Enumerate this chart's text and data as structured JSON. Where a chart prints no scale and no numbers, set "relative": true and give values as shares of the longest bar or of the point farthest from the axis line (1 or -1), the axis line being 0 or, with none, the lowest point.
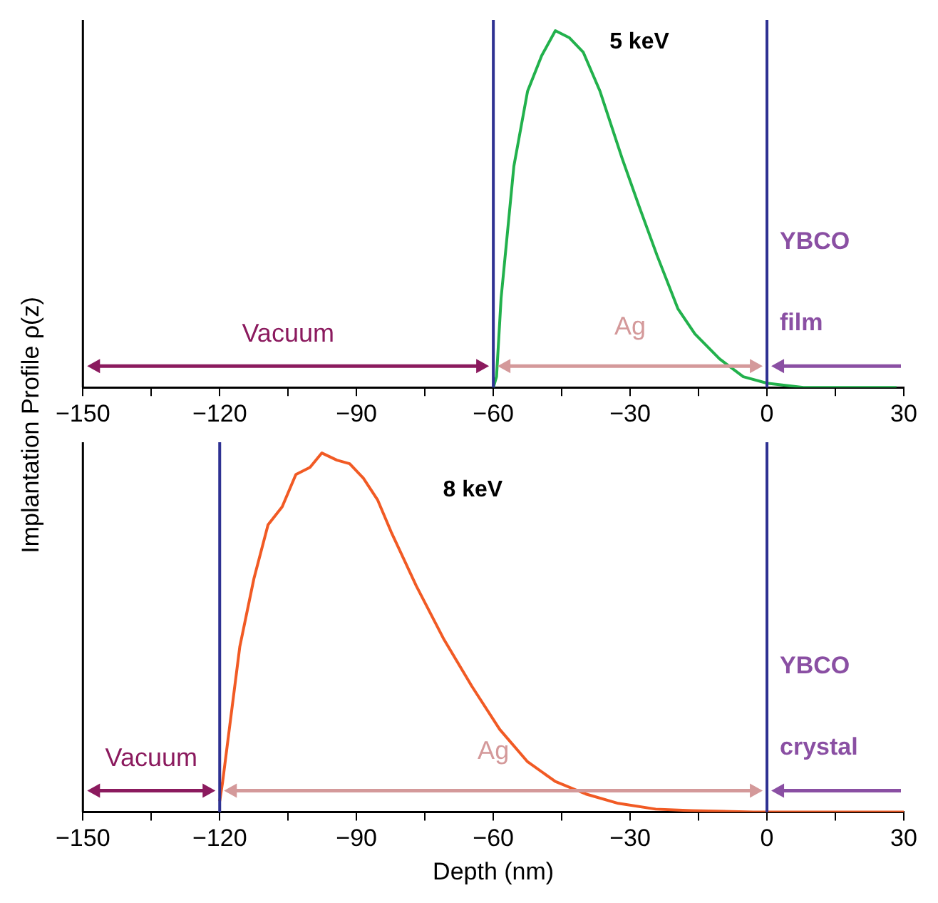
{
  "chart_data": [
    {
      "type": "line",
      "relative": true,
      "ylabel": "Implantation Profile ρ(z)",
      "xlim": [
        -150,
        30
      ],
      "xticks": [
        -150,
        {
          "value": -135,
          "label": null
        },
        -120,
        {
          "value": -105,
          "label": null
        },
        -90,
        {
          "value": -75,
          "label": null
        },
        -60,
        {
          "value": -45,
          "label": null
        },
        -30,
        {
          "value": -15,
          "label": null
        },
        0,
        {
          "value": 15,
          "label": null
        },
        30
      ],
      "tick_labels": "x",
      "grid": false,
      "legend": false,
      "marker": "none",
      "series": [
        {
          "name": "5 keV",
          "color": "#22b14c",
          "x": [
            -60,
            -59.3,
            -58.3,
            -55.5,
            -52.5,
            -49.4,
            -46.4,
            -43.3,
            -40.3,
            -36.6,
            -31.7,
            -28.1,
            -24.1,
            -19.5,
            -15.8,
            -10.4,
            -5.2,
            0,
            8,
            28.4
          ],
          "values": [
            0,
            0.03,
            0.25,
            0.62,
            0.83,
            0.93,
            1,
            0.98,
            0.94,
            0.83,
            0.64,
            0.51,
            0.37,
            0.22,
            0.15,
            0.08,
            0.03,
            0.012,
            0,
            0
          ]
        }
      ],
      "ref_lines": [
        {
          "axis": "x",
          "value": -60,
          "color": "#2e3192"
        },
        {
          "axis": "x",
          "value": 0,
          "color": "#2e3192"
        }
      ],
      "annotations": [
        "Vacuum",
        "Ag",
        "YBCO",
        "film"
      ]
    },
    {
      "type": "line",
      "relative": true,
      "xlabel": "Depth (nm)",
      "xlim": [
        -150,
        30
      ],
      "xticks": [
        -150,
        {
          "value": -135,
          "label": null
        },
        -120,
        {
          "value": -105,
          "label": null
        },
        -90,
        {
          "value": -75,
          "label": null
        },
        -60,
        {
          "value": -45,
          "label": null
        },
        -30,
        {
          "value": -15,
          "label": null
        },
        0,
        {
          "value": 15,
          "label": null
        },
        30
      ],
      "tick_labels": "x",
      "grid": false,
      "legend": false,
      "marker": "none",
      "series": [
        {
          "name": "8 keV",
          "color": "#f15a24",
          "x": [
            -120,
            -119.4,
            -115.6,
            -112.5,
            -109.4,
            -106.3,
            -103.3,
            -100.2,
            -97.6,
            -94.3,
            -91.5,
            -88.5,
            -85.4,
            -82.4,
            -76.9,
            -70.8,
            -64.7,
            -58.6,
            -52.5,
            -46.4,
            -39.7,
            -32.6,
            -24.4,
            -16.5,
            -3,
            15,
            30
          ],
          "values": [
            0.03,
            0.08,
            0.46,
            0.65,
            0.8,
            0.85,
            0.94,
            0.96,
            1,
            0.98,
            0.97,
            0.93,
            0.87,
            0.78,
            0.63,
            0.48,
            0.35,
            0.23,
            0.14,
            0.085,
            0.05,
            0.024,
            0.008,
            0.004,
            0,
            0,
            0
          ]
        }
      ],
      "ref_lines": [
        {
          "axis": "x",
          "value": -120,
          "color": "#2e3192"
        },
        {
          "axis": "x",
          "value": 0,
          "color": "#2e3192"
        }
      ],
      "annotations": [
        "Vacuum",
        "Ag",
        "YBCO",
        "crystal"
      ]
    }
  ]
}
